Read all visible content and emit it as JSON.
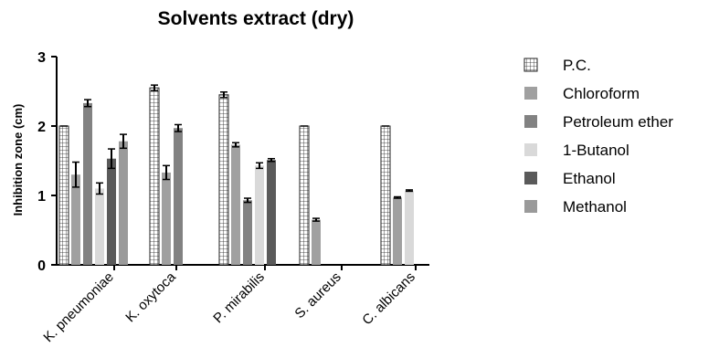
{
  "chart_data": {
    "type": "bar",
    "title": "Solvents extract (dry)",
    "xlabel": "",
    "ylabel": "Inhibition zone (cm)",
    "ylim": [
      0,
      3
    ],
    "yticks": [
      "0",
      "1",
      "2",
      "3"
    ],
    "categories": [
      "K. pneumoniae",
      "K. oxytoca",
      "P. mirabilis",
      "S. aureus",
      "C. albicans"
    ],
    "legend_position": "right",
    "series": [
      {
        "name": "P.C.",
        "color": "#ffffff",
        "pattern": "grid",
        "values": [
          2.0,
          2.55,
          2.45,
          2.0,
          2.0
        ],
        "errors": [
          0.0,
          0.04,
          0.04,
          0.0,
          0.0
        ]
      },
      {
        "name": "Chloroform",
        "color": "#a0a0a0",
        "values": [
          1.3,
          1.33,
          1.73,
          0.65,
          0.97
        ],
        "errors": [
          0.18,
          0.1,
          0.03,
          0.02,
          0.01
        ]
      },
      {
        "name": "Petroleum ether",
        "color": "#828282",
        "values": [
          2.33,
          1.97,
          0.93,
          null,
          null
        ],
        "errors": [
          0.05,
          0.05,
          0.03,
          null,
          null
        ]
      },
      {
        "name": "1-Butanol",
        "color": "#d9d9d9",
        "values": [
          1.1,
          null,
          1.43,
          null,
          1.07
        ],
        "errors": [
          0.08,
          null,
          0.04,
          null,
          0.01
        ]
      },
      {
        "name": "Ethanol",
        "color": "#5a5a5a",
        "values": [
          1.53,
          null,
          1.51,
          null,
          null
        ],
        "errors": [
          0.14,
          null,
          0.02,
          null,
          null
        ]
      },
      {
        "name": "Methanol",
        "color": "#9a9a9a",
        "values": [
          1.78,
          null,
          null,
          null,
          null
        ],
        "errors": [
          0.1,
          null,
          null,
          null,
          null
        ]
      }
    ]
  }
}
